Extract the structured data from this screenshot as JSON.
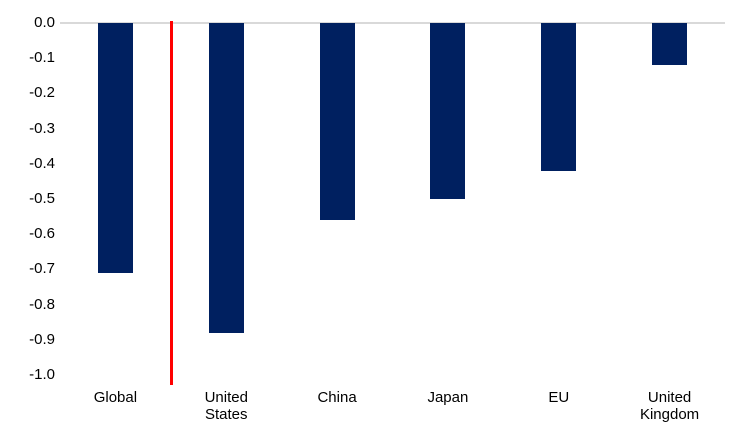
{
  "chart_data": {
    "type": "bar",
    "title": "",
    "xlabel": "",
    "ylabel": "",
    "categories": [
      "Global",
      "United States",
      "China",
      "Japan",
      "EU",
      "United Kingdom"
    ],
    "values": [
      -0.71,
      -0.88,
      -0.56,
      -0.5,
      -0.42,
      -0.12
    ],
    "ylim": [
      -1.0,
      0.0
    ],
    "y_ticks": [
      0.0,
      -0.1,
      -0.2,
      -0.3,
      -0.4,
      -0.5,
      -0.6,
      -0.7,
      -0.8,
      -0.9,
      -1.0
    ],
    "y_tick_labels": [
      "0.0",
      "-0.1",
      "-0.2",
      "-0.3",
      "-0.4",
      "-0.5",
      "-0.6",
      "-0.7",
      "-0.8",
      "-0.9",
      "-1.0"
    ],
    "grid": false,
    "legend": "none",
    "colors": {
      "bar": "#002060",
      "divider_line": "#FF0000",
      "zero_line": "#D9D9D9",
      "text": "#000000",
      "background": "#FFFFFF"
    },
    "annotations": [
      {
        "type": "vertical-line",
        "between": [
          "Global",
          "United States"
        ],
        "color": "#FF0000"
      }
    ]
  }
}
